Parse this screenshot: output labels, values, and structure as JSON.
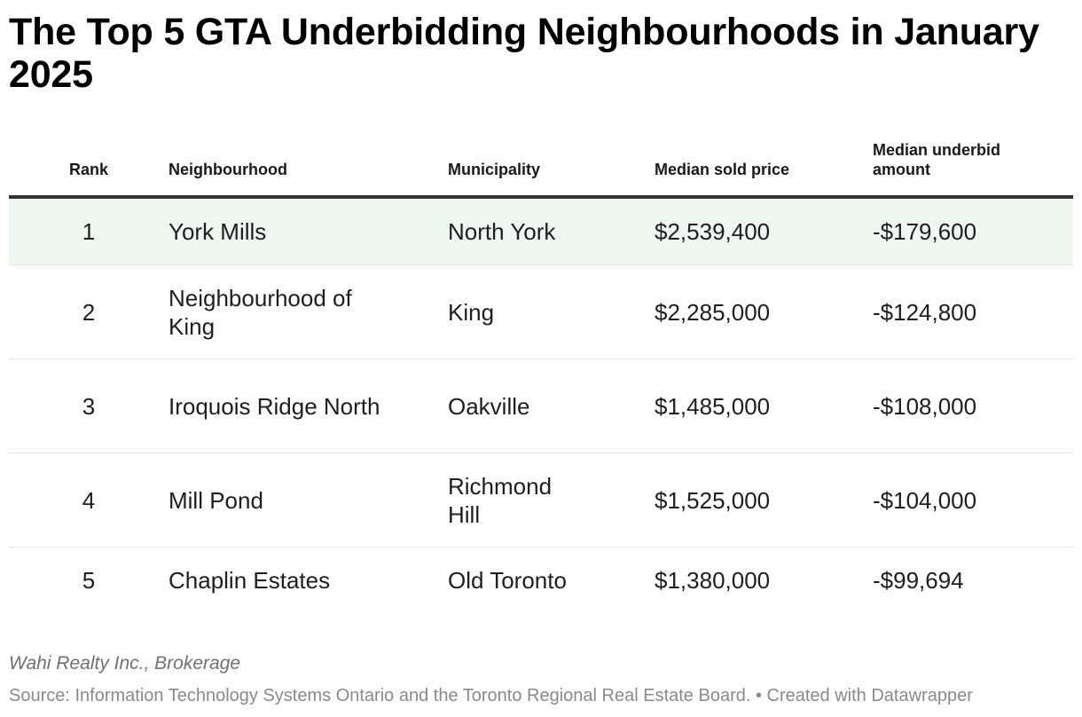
{
  "title": "The Top 5 GTA Underbidding Neighbourhoods in January 2025",
  "columns": [
    "Rank",
    "Neighbourhood",
    "Municipality",
    "Median sold price",
    "Median underbid amount"
  ],
  "rows": [
    {
      "rank": "1",
      "neighbourhood": "York Mills",
      "municipality": "North York",
      "price": "$2,539,400",
      "underbid": "-$179,600"
    },
    {
      "rank": "2",
      "neighbourhood": "Neighbourhood of King",
      "municipality": "King",
      "price": "$2,285,000",
      "underbid": "-$124,800"
    },
    {
      "rank": "3",
      "neighbourhood": "Iroquois Ridge North",
      "municipality": "Oakville",
      "price": "$1,485,000",
      "underbid": "-$108,000"
    },
    {
      "rank": "4",
      "neighbourhood": "Mill Pond",
      "municipality": "Richmond Hill",
      "price": "$1,525,000",
      "underbid": "-$104,000"
    },
    {
      "rank": "5",
      "neighbourhood": "Chaplin Estates",
      "municipality": "Old Toronto",
      "price": "$1,380,000",
      "underbid": "-$99,694"
    }
  ],
  "byline": "Wahi Realty Inc., Brokerage",
  "source": "Source: Information Technology Systems Ontario and the Toronto Regional Real Estate Board. • Created with Datawrapper",
  "colors": {
    "highlight_row": "#eef7f0",
    "header_rule": "#333333",
    "row_divider": "#e3e3e3"
  },
  "chart_data": {
    "type": "table",
    "title": "The Top 5 GTA Underbidding Neighbourhoods in January 2025",
    "columns": [
      "Rank",
      "Neighbourhood",
      "Municipality",
      "Median sold price",
      "Median underbid amount"
    ],
    "rows": [
      [
        1,
        "York Mills",
        "North York",
        2539400,
        -179600
      ],
      [
        2,
        "Neighbourhood of King",
        "King",
        2285000,
        -124800
      ],
      [
        3,
        "Iroquois Ridge North",
        "Oakville",
        1485000,
        -108000
      ],
      [
        4,
        "Mill Pond",
        "Richmond Hill",
        1525000,
        -104000
      ],
      [
        5,
        "Chaplin Estates",
        "Old Toronto",
        1380000,
        -99694
      ]
    ]
  }
}
